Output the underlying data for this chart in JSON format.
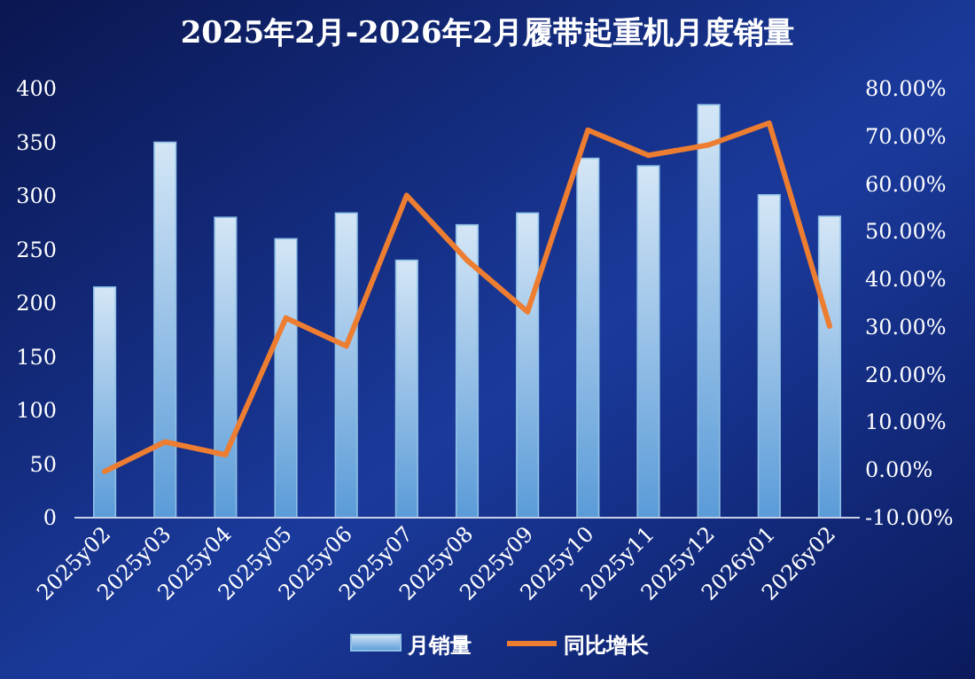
{
  "chart_data": {
    "type": "bar",
    "title": "2025年2月-2026年2月履带起重机月度销量",
    "categories": [
      "2025y02",
      "2025y03",
      "2025y04",
      "2025y05",
      "2025y06",
      "2025y07",
      "2025y08",
      "2025y09",
      "2025y10",
      "2025y11",
      "2025y12",
      "2026y01",
      "2026y02"
    ],
    "series": [
      {
        "name": "月销量",
        "color": "#8fc0e6",
        "values": [
          215,
          350,
          280,
          260,
          284,
          240,
          273,
          284,
          335,
          328,
          385,
          301,
          281
        ]
      },
      {
        "name": "同比增长",
        "type": "line",
        "axis": "y2",
        "color": "#ed7d31",
        "values": [
          -0.3,
          5.9,
          3.2,
          31.9,
          26.0,
          57.6,
          44,
          33.2,
          71.3,
          66.0,
          68.2,
          72.8,
          30.2
        ]
      }
    ],
    "ylim": [
      0,
      400
    ],
    "yticks": [
      0,
      50,
      100,
      150,
      200,
      250,
      300,
      350,
      400
    ],
    "y2lim": [
      -10,
      80
    ],
    "y2ticks": [
      {
        "value": -10,
        "label": "-10.00%"
      },
      {
        "value": 0,
        "label": "0.00%"
      },
      {
        "value": 10,
        "label": "10.00%"
      },
      {
        "value": 20,
        "label": "20.00%"
      },
      {
        "value": 30,
        "label": "30.00%"
      },
      {
        "value": 40,
        "label": "40.00%"
      },
      {
        "value": 50,
        "label": "50.00%"
      },
      {
        "value": 60,
        "label": "60.00%"
      },
      {
        "value": 70,
        "label": "70.00%"
      },
      {
        "value": 80,
        "label": "80.00%"
      }
    ],
    "grid": false,
    "legend": "bottom",
    "marker": "none",
    "line_style": "solid"
  }
}
